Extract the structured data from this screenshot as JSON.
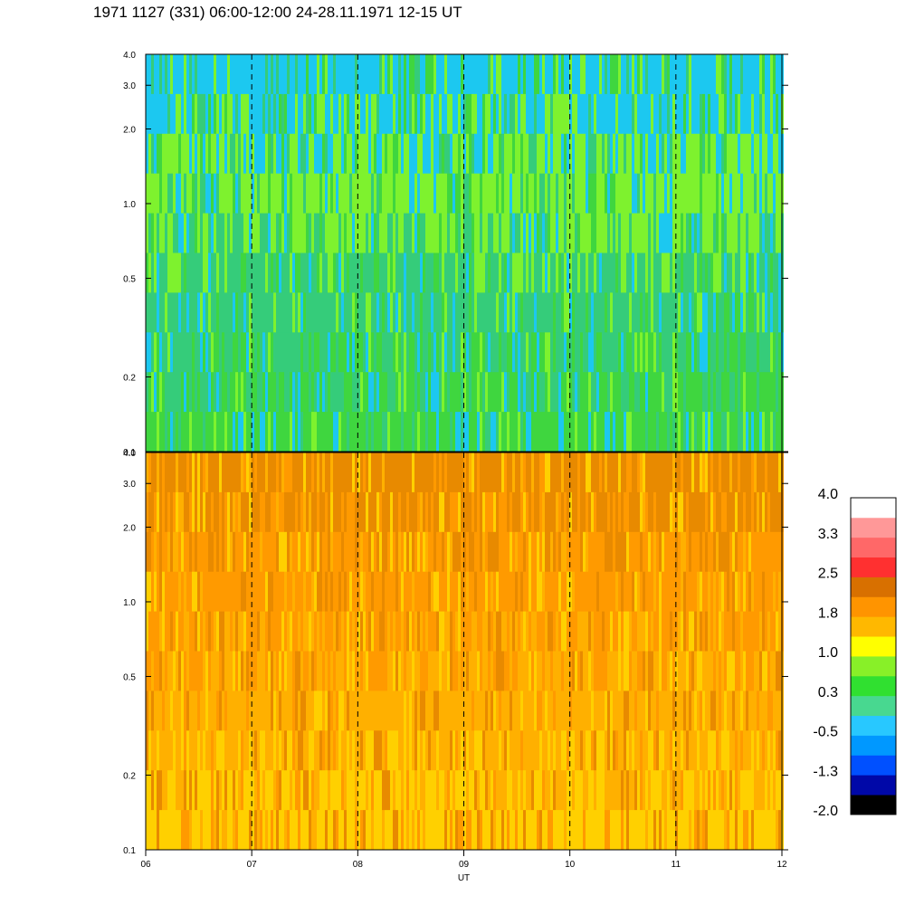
{
  "header": {
    "title": "1971 1127 (331) 06:00-12:00 24-28.11.1971  12-15 UT"
  },
  "chart_data": {
    "type": "heatmap",
    "panels": [
      {
        "name": "upper",
        "y_scale": "log",
        "ylim": [
          0.1,
          4.0
        ],
        "dominant_colors_low_to_high_freq": [
          "#3fd63f",
          "#35cc7a",
          "#7ef22e",
          "#1cc8f0"
        ]
      },
      {
        "name": "lower",
        "y_scale": "log",
        "ylim": [
          0.1,
          4.0
        ],
        "dominant_colors_low_to_high_freq": [
          "#ffd000",
          "#ffb000",
          "#ff9a00",
          "#e88a00"
        ]
      }
    ],
    "x_ticks": [
      "06",
      "07",
      "08",
      "09",
      "10",
      "11",
      "12"
    ],
    "x_range": [
      6,
      12
    ],
    "xlabel": "UT",
    "y_ticks": [
      "0.1",
      "0.2",
      "0.5",
      "1.0",
      "2.0",
      "3.0",
      "4.0"
    ],
    "y_tick_values": [
      0.1,
      0.2,
      0.5,
      1.0,
      2.0,
      3.0,
      4.0
    ],
    "dashed_vlines_at": [
      7,
      8,
      9,
      10,
      11
    ],
    "colorbar": {
      "levels": [
        "4.0",
        "3.3",
        "2.5",
        "1.8",
        "1.0",
        "0.3",
        "-0.5",
        "-1.3",
        "-2.0"
      ],
      "colors": [
        "#000000",
        "#0008a8",
        "#0050ff",
        "#0098ff",
        "#28c8ff",
        "#48d890",
        "#30e030",
        "#88f028",
        "#ffff00",
        "#ffb800",
        "#ff9400",
        "#d87000",
        "#ff3030",
        "#ff6868",
        "#ff9898",
        "#ffffff"
      ]
    }
  }
}
